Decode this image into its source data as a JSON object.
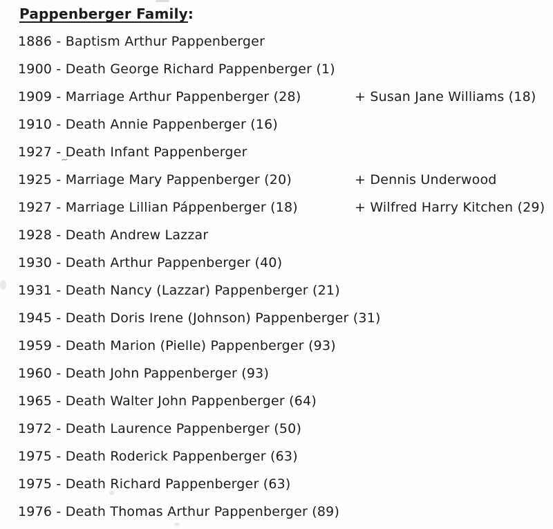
{
  "document": {
    "title": "Pappenberger Family",
    "title_suffix": ":"
  },
  "events": [
    {
      "text": "1886 - Baptism Arthur Pappenberger",
      "spouse": ""
    },
    {
      "text": "1900 - Death George Richard Pappenberger (1)",
      "spouse": ""
    },
    {
      "text": "1909 - Marriage Arthur Pappenberger (28)",
      "spouse": "+ Susan Jane Williams (18)"
    },
    {
      "text": "1910 - Death Annie Pappenberger (16)",
      "spouse": ""
    },
    {
      "text": "1927 - Death Infant Pappenberger",
      "spouse": ""
    },
    {
      "text": "1925 - Marriage Mary Pappenberger (20)",
      "spouse": "+ Dennis Underwood"
    },
    {
      "text": "1927 - Marriage Lillian Páppenberger (18)",
      "spouse": "+ Wilfred Harry Kitchen (29)"
    },
    {
      "text": "1928 - Death Andrew Lazzar",
      "spouse": ""
    },
    {
      "text": "1930 - Death Arthur Pappenberger (40)",
      "spouse": ""
    },
    {
      "text": "1931 - Death Nancy (Lazzar) Pappenberger (21)",
      "spouse": ""
    },
    {
      "text": "1945 - Death Doris Irene (Johnson) Pappenberger (31)",
      "spouse": ""
    },
    {
      "text": "1959 - Death Marion (Pielle) Pappenberger (93)",
      "spouse": ""
    },
    {
      "text": "1960 - Death John Pappenberger (93)",
      "spouse": ""
    },
    {
      "text": "1965 - Death Walter John Pappenberger (64)",
      "spouse": ""
    },
    {
      "text": "1972 - Death Laurence Pappenberger (50)",
      "spouse": ""
    },
    {
      "text": "1975 - Death Roderick Pappenberger (63)",
      "spouse": ""
    },
    {
      "text": "1975 - Death Richard Pappenberger (63)",
      "spouse": ""
    },
    {
      "text": "1976 - Death Thomas Arthur Pappenberger (89)",
      "spouse": ""
    }
  ]
}
